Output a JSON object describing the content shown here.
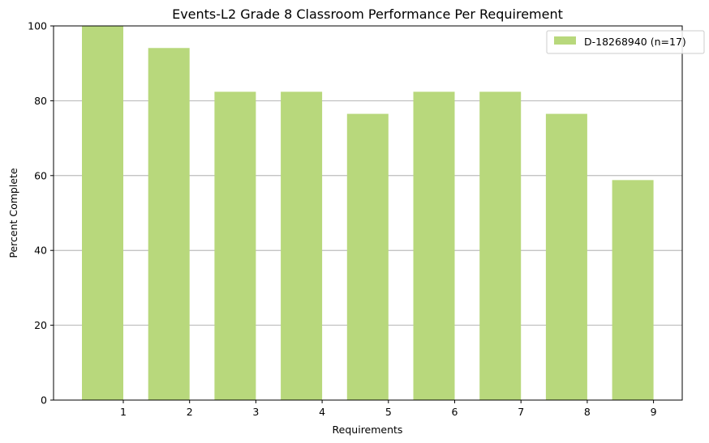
{
  "chart_data": {
    "type": "bar",
    "title": "Events-L2 Grade 8 Classroom Performance Per Requirement",
    "xlabel": "Requirements",
    "ylabel": "Percent Complete",
    "categories": [
      "1",
      "2",
      "3",
      "4",
      "5",
      "6",
      "7",
      "8",
      "9"
    ],
    "series": [
      {
        "name": "D-18268940 (n=17)",
        "values": [
          100,
          94.1,
          82.4,
          82.4,
          76.5,
          82.4,
          82.4,
          76.5,
          58.8
        ],
        "color": "#b8d87c"
      }
    ],
    "ylim": [
      0,
      100
    ],
    "yticks": [
      0,
      20,
      40,
      60,
      80,
      100
    ],
    "grid": "y",
    "legend_position": "top-right"
  }
}
